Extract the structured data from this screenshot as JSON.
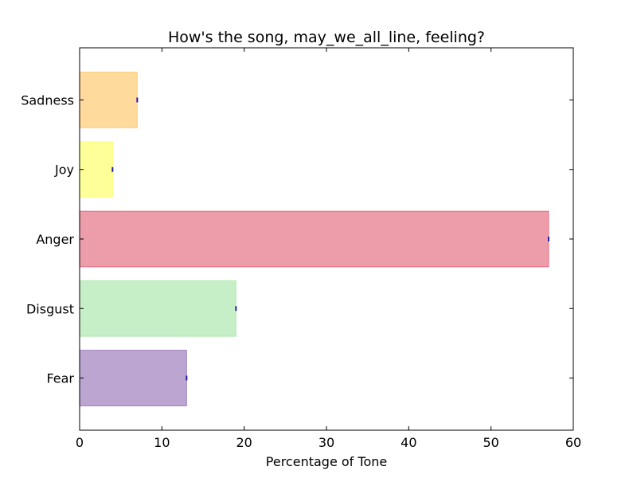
{
  "chart_data": {
    "type": "bar",
    "orientation": "horizontal",
    "title": "How's the song, may_we_all_line, feeling?",
    "xlabel": "Percentage of Tone",
    "ylabel": "",
    "xlim": [
      0,
      60
    ],
    "xticks": [
      "0",
      "10",
      "20",
      "30",
      "40",
      "50",
      "60"
    ],
    "categories": [
      "Fear",
      "Disgust",
      "Anger",
      "Joy",
      "Sadness"
    ],
    "values": [
      13,
      19,
      57,
      4,
      7
    ],
    "colors": [
      "#7b4ba6",
      "#90e090",
      "#dc3a54",
      "#ffff33",
      "#ffb53b"
    ],
    "grid": false,
    "legend": "none"
  }
}
